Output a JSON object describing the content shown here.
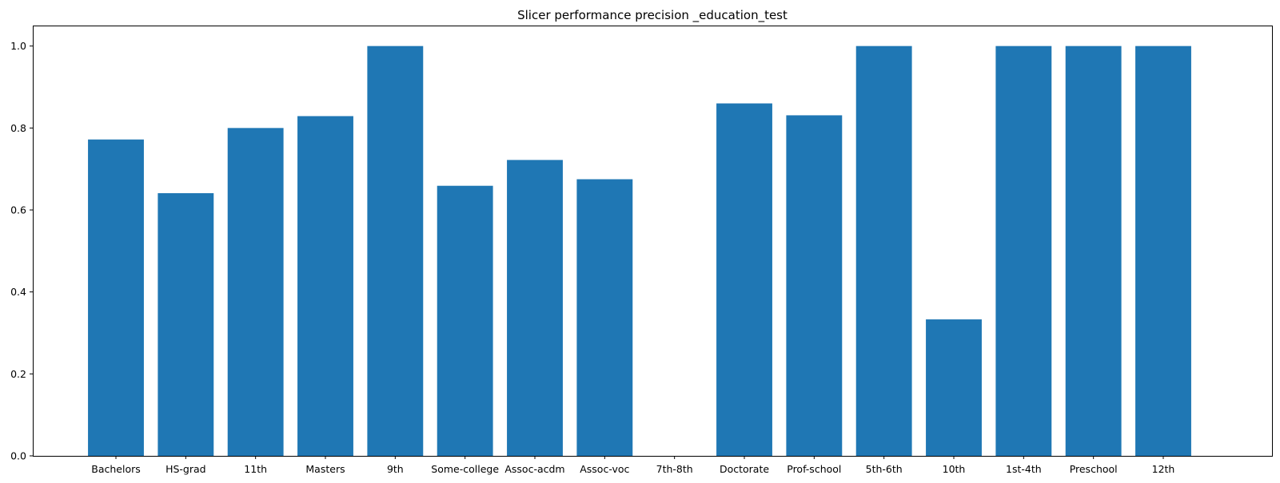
{
  "chart_data": {
    "type": "bar",
    "title": "Slicer performance precision _education_test",
    "xlabel": "",
    "ylabel": "",
    "categories": [
      "Bachelors",
      "HS-grad",
      "11th",
      "Masters",
      "9th",
      "Some-college",
      "Assoc-acdm",
      "Assoc-voc",
      "7th-8th",
      "Doctorate",
      "Prof-school",
      "5th-6th",
      "10th",
      "1st-4th",
      "Preschool",
      "12th"
    ],
    "values": [
      0.772,
      0.641,
      0.8,
      0.829,
      1.0,
      0.659,
      0.722,
      0.675,
      0.0,
      0.86,
      0.831,
      1.0,
      0.333,
      1.0,
      1.0,
      1.0
    ],
    "ylim": [
      0,
      1.05
    ],
    "yticks": [
      0.0,
      0.2,
      0.4,
      0.6,
      0.8,
      1.0
    ],
    "ytick_labels": [
      "0.0",
      "0.2",
      "0.4",
      "0.6",
      "0.8",
      "1.0"
    ],
    "bar_color": "#1f77b4",
    "grid": false,
    "legend": "none"
  }
}
